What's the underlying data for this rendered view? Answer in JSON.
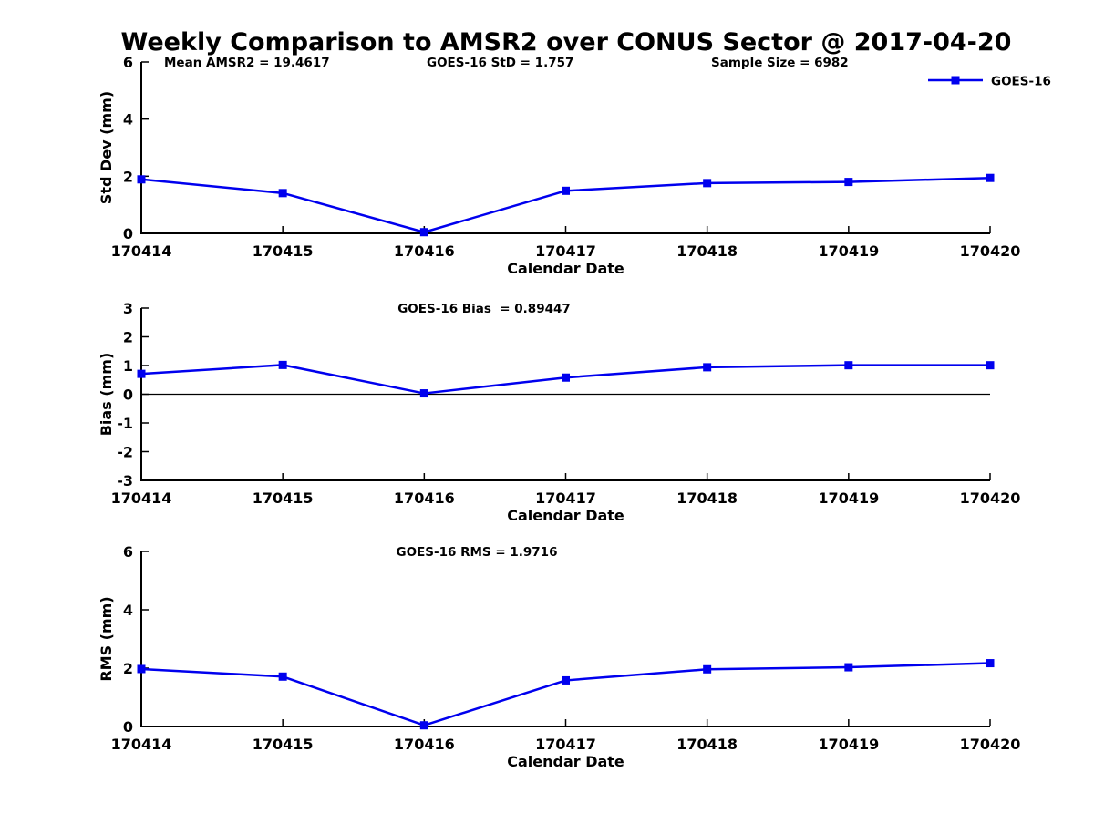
{
  "title": "Weekly Comparison to AMSR2 over CONUS Sector @ 2017-04-20",
  "legend": {
    "label": "GOES-16"
  },
  "colors": {
    "series_blue": "#0000EE",
    "axis_black": "#000000",
    "background": "#ffffff"
  },
  "chart_data": [
    {
      "type": "line",
      "panel_id": "std-dev",
      "annotations": [
        "Mean AMSR2 = 19.4617",
        "GOES-16 StD = 1.757",
        "Sample Size = 6982"
      ],
      "x_categories": [
        "170414",
        "170415",
        "170416",
        "170417",
        "170418",
        "170419",
        "170420"
      ],
      "series": [
        {
          "name": "GOES-16",
          "values": [
            1.89,
            1.41,
            0.04,
            1.49,
            1.76,
            1.8,
            1.94
          ]
        }
      ],
      "xlabel": "Calendar Date",
      "ylabel": "Std Dev (mm)",
      "ylim": [
        0,
        6
      ],
      "yticks": [
        0,
        2,
        4,
        6
      ],
      "zero_line": false,
      "grid": false,
      "legend_position": "upper right outside"
    },
    {
      "type": "line",
      "panel_id": "bias",
      "annotations": [
        "GOES-16 Bias  = 0.89447"
      ],
      "x_categories": [
        "170414",
        "170415",
        "170416",
        "170417",
        "170418",
        "170419",
        "170420"
      ],
      "series": [
        {
          "name": "GOES-16",
          "values": [
            0.71,
            1.02,
            0.03,
            0.58,
            0.94,
            1.01,
            1.01
          ]
        }
      ],
      "xlabel": "Calendar Date",
      "ylabel": "Bias (mm)",
      "ylim": [
        -3,
        3
      ],
      "yticks": [
        -3,
        -2,
        -1,
        0,
        1,
        2,
        3
      ],
      "zero_line": true,
      "grid": false
    },
    {
      "type": "line",
      "panel_id": "rms",
      "annotations": [
        "GOES-16 RMS = 1.9716"
      ],
      "x_categories": [
        "170414",
        "170415",
        "170416",
        "170417",
        "170418",
        "170419",
        "170420"
      ],
      "series": [
        {
          "name": "GOES-16",
          "values": [
            1.97,
            1.71,
            0.04,
            1.58,
            1.96,
            2.03,
            2.17
          ]
        }
      ],
      "xlabel": "Calendar Date",
      "ylabel": "RMS (mm)",
      "ylim": [
        0,
        6
      ],
      "yticks": [
        0,
        2,
        4,
        6
      ],
      "zero_line": false,
      "grid": false
    }
  ]
}
